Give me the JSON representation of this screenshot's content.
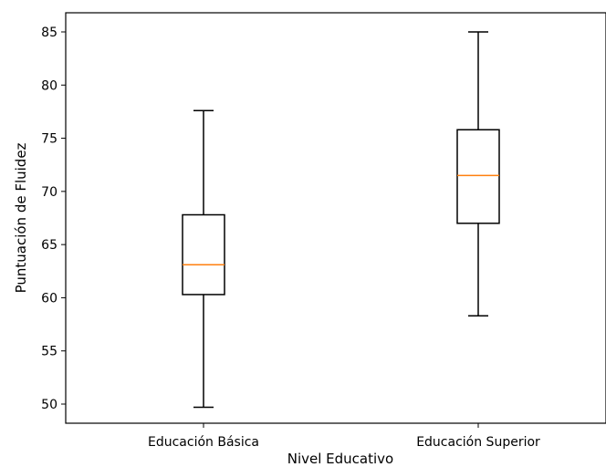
{
  "chart_data": {
    "type": "boxplot",
    "title": "",
    "xlabel": "Nivel Educativo",
    "ylabel": "Puntuación de Fluidez",
    "ylim": [
      48.2,
      86.8
    ],
    "yticks": [
      50,
      55,
      60,
      65,
      70,
      75,
      80,
      85
    ],
    "categories": [
      "Educación Básica",
      "Educación Superior"
    ],
    "boxes": [
      {
        "category": "Educación Básica",
        "whisker_low": 49.7,
        "q1": 60.3,
        "median": 63.1,
        "q3": 67.8,
        "whisker_high": 77.6
      },
      {
        "category": "Educación Superior",
        "whisker_low": 58.3,
        "q1": 67.0,
        "median": 71.5,
        "q3": 75.8,
        "whisker_high": 85.0
      }
    ],
    "grid": false,
    "colors": {
      "box": "#000000",
      "median": "#ff7f0e",
      "background": "#ffffff"
    }
  }
}
